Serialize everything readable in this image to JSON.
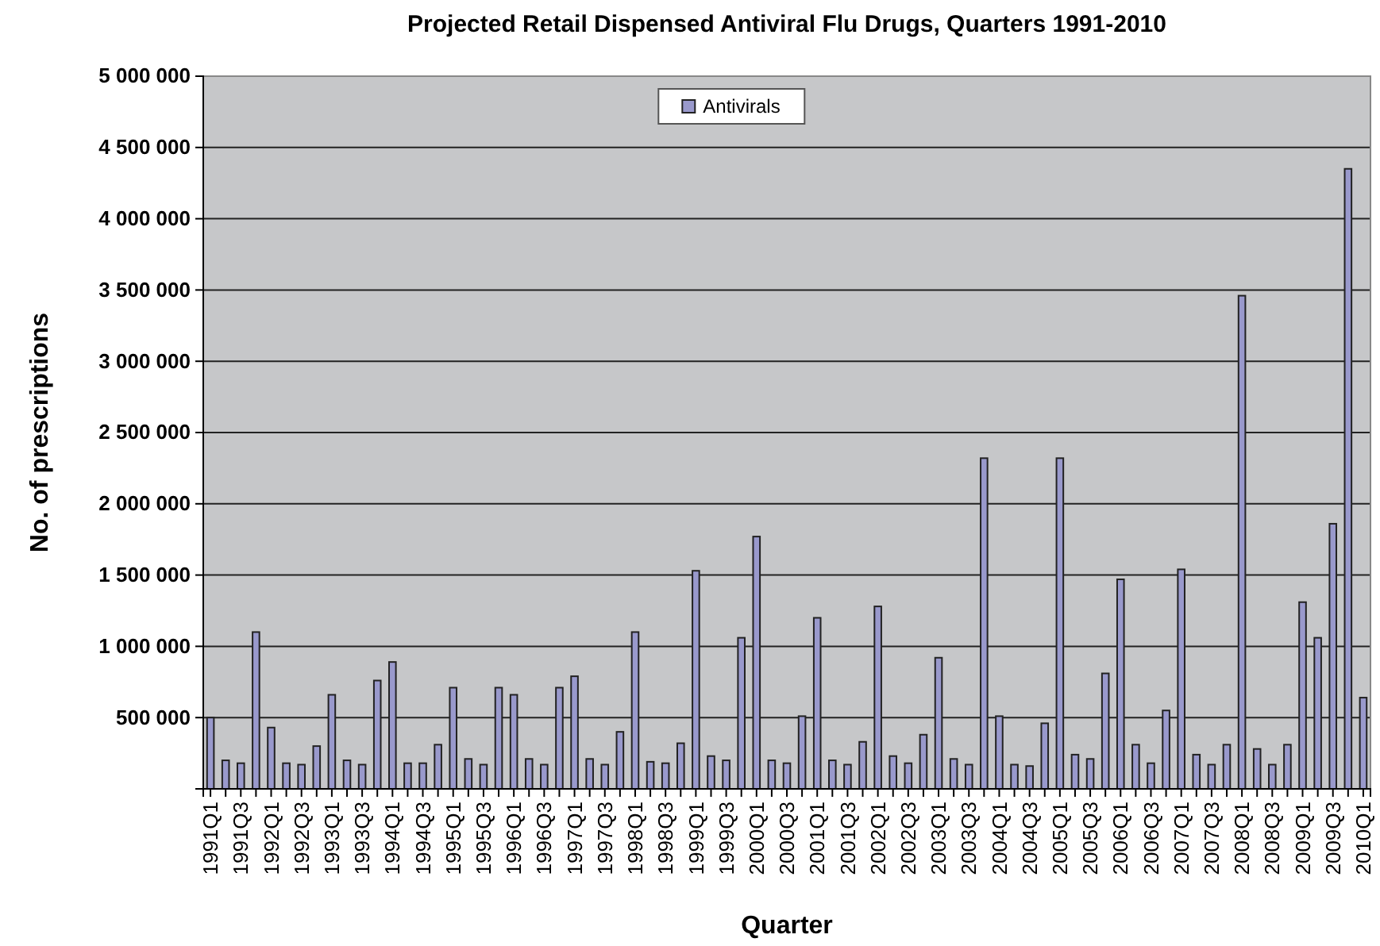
{
  "chart_data": {
    "type": "bar",
    "title": "Projected Retail Dispensed Antiviral Flu Drugs, Quarters 1991-2010",
    "xlabel": "Quarter",
    "ylabel": "No. of prescriptions",
    "categories": [
      "1991Q1",
      null,
      "1991Q3",
      null,
      "1992Q1",
      null,
      "1992Q3",
      null,
      "1993Q1",
      null,
      "1993Q3",
      null,
      "1994Q1",
      null,
      "1994Q3",
      null,
      "1995Q1",
      null,
      "1995Q3",
      null,
      "1996Q1",
      null,
      "1996Q3",
      null,
      "1997Q1",
      null,
      "1997Q3",
      null,
      "1998Q1",
      null,
      "1998Q3",
      null,
      "1999Q1",
      null,
      "1999Q3",
      null,
      "2000Q1",
      null,
      "2000Q3",
      null,
      "2001Q1",
      null,
      "2001Q3",
      null,
      "2002Q1",
      null,
      "2002Q3",
      null,
      "2003Q1",
      null,
      "2003Q3",
      null,
      "2004Q1",
      null,
      "2004Q3",
      null,
      "2005Q1",
      null,
      "2005Q3",
      null,
      "2006Q1",
      null,
      "2006Q3",
      null,
      "2007Q1",
      null,
      "2007Q3",
      null,
      "2008Q1",
      null,
      "2008Q3",
      null,
      "2009Q1",
      null,
      "2009Q3",
      null,
      "2010Q1"
    ],
    "series": [
      {
        "name": "Antivirals",
        "color": "#9999cc",
        "values": [
          500000,
          200000,
          180000,
          1100000,
          430000,
          180000,
          170000,
          300000,
          660000,
          200000,
          170000,
          760000,
          890000,
          180000,
          180000,
          310000,
          710000,
          210000,
          170000,
          710000,
          660000,
          210000,
          170000,
          710000,
          790000,
          210000,
          170000,
          400000,
          1100000,
          190000,
          180000,
          320000,
          1530000,
          230000,
          200000,
          1060000,
          1770000,
          200000,
          180000,
          510000,
          1200000,
          200000,
          170000,
          330000,
          1280000,
          230000,
          180000,
          380000,
          920000,
          210000,
          170000,
          2320000,
          510000,
          170000,
          160000,
          460000,
          2320000,
          240000,
          210000,
          810000,
          1470000,
          310000,
          180000,
          550000,
          1540000,
          240000,
          170000,
          310000,
          3460000,
          280000,
          170000,
          310000,
          1310000,
          1060000,
          1860000,
          4350000,
          640000
        ]
      }
    ],
    "ylim": [
      0,
      5000000
    ],
    "yticks": [
      {
        "value": 500000,
        "label": "500 000"
      },
      {
        "value": 1000000,
        "label": "1 000 000"
      },
      {
        "value": 1500000,
        "label": "1 500 000"
      },
      {
        "value": 2000000,
        "label": "2 000 000"
      },
      {
        "value": 2500000,
        "label": "2 500 000"
      },
      {
        "value": 3000000,
        "label": "3 000 000"
      },
      {
        "value": 3500000,
        "label": "3 500 000"
      },
      {
        "value": 4000000,
        "label": "4 000 000"
      },
      {
        "value": 4500000,
        "label": "4 500 000"
      },
      {
        "value": 5000000,
        "label": "5 000 000"
      }
    ],
    "grid": "y",
    "legend": "top"
  }
}
